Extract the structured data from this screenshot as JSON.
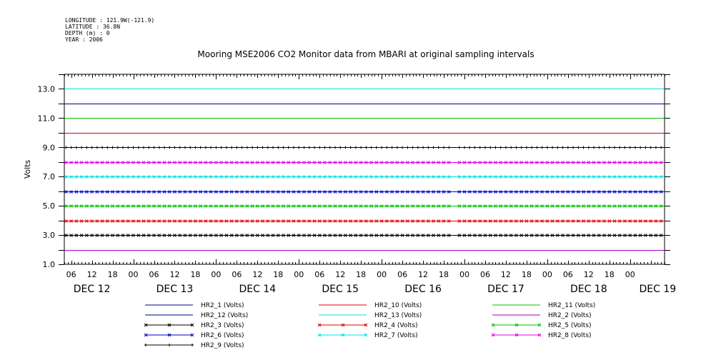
{
  "header": {
    "lines": [
      "LONGITUDE : 121.9W(-121.9)",
      "LATITUDE : 36.8N",
      "DEPTH (m) : 0",
      "YEAR : 2006"
    ]
  },
  "chart_data": {
    "type": "line",
    "title": "Mooring MSE2006 CO2 Monitor data from MBARI at original sampling intervals",
    "ylabel": "Volts",
    "xlabel": "",
    "ylim": [
      1.0,
      14.0
    ],
    "yticks": [
      "1.0",
      "3.0",
      "5.0",
      "7.0",
      "9.0",
      "11.0",
      "13.0"
    ],
    "xrange_hours": [
      4,
      178
    ],
    "hour_ticks": [
      "06",
      "12",
      "18",
      "00",
      "06",
      "12",
      "18",
      "00",
      "06",
      "12",
      "18",
      "00",
      "06",
      "12",
      "18",
      "00",
      "06",
      "12",
      "18",
      "00",
      "06",
      "12",
      "18",
      "00",
      "06",
      "12",
      "18",
      "00"
    ],
    "day_labels": [
      "DEC 12",
      "DEC 13",
      "DEC 14",
      "DEC 15",
      "DEC 16",
      "DEC 17",
      "DEC 18",
      "DEC 19"
    ],
    "grid": false,
    "legend_placement": "bottom",
    "series": [
      {
        "name": "HR2_1 (Volts)",
        "value": 12.0,
        "color": "#000080",
        "marker": "none"
      },
      {
        "name": "HR2_10 (Volts)",
        "value": 10.0,
        "color": "#e00000",
        "marker": "none"
      },
      {
        "name": "HR2_11 (Volts)",
        "value": 11.0,
        "color": "#00c000",
        "marker": "none"
      },
      {
        "name": "HR2_12 (Volts)",
        "value": 12.0,
        "color": "#000080",
        "marker": "none"
      },
      {
        "name": "HR2_13 (Volts)",
        "value": 13.0,
        "color": "#00e0e0",
        "marker": "none"
      },
      {
        "name": "HR2_2 (Volts)",
        "value": 2.0,
        "color": "#a000c0",
        "marker": "none"
      },
      {
        "name": "HR2_3 (Volts)",
        "value": 3.0,
        "color": "#000000",
        "marker": "x"
      },
      {
        "name": "HR2_4 (Volts)",
        "value": 4.0,
        "color": "#e00000",
        "marker": "x"
      },
      {
        "name": "HR2_5 (Volts)",
        "value": 5.0,
        "color": "#00c000",
        "marker": "x"
      },
      {
        "name": "HR2_6 (Volts)",
        "value": 6.0,
        "color": "#0000c0",
        "marker": "x"
      },
      {
        "name": "HR2_7 (Volts)",
        "value": 7.0,
        "color": "#00e0e0",
        "marker": "x"
      },
      {
        "name": "HR2_8 (Volts)",
        "value": 8.0,
        "color": "#e000e0",
        "marker": "x"
      },
      {
        "name": "HR2_9 (Volts)",
        "value": 9.0,
        "color": "#000000",
        "marker": "+"
      }
    ]
  }
}
